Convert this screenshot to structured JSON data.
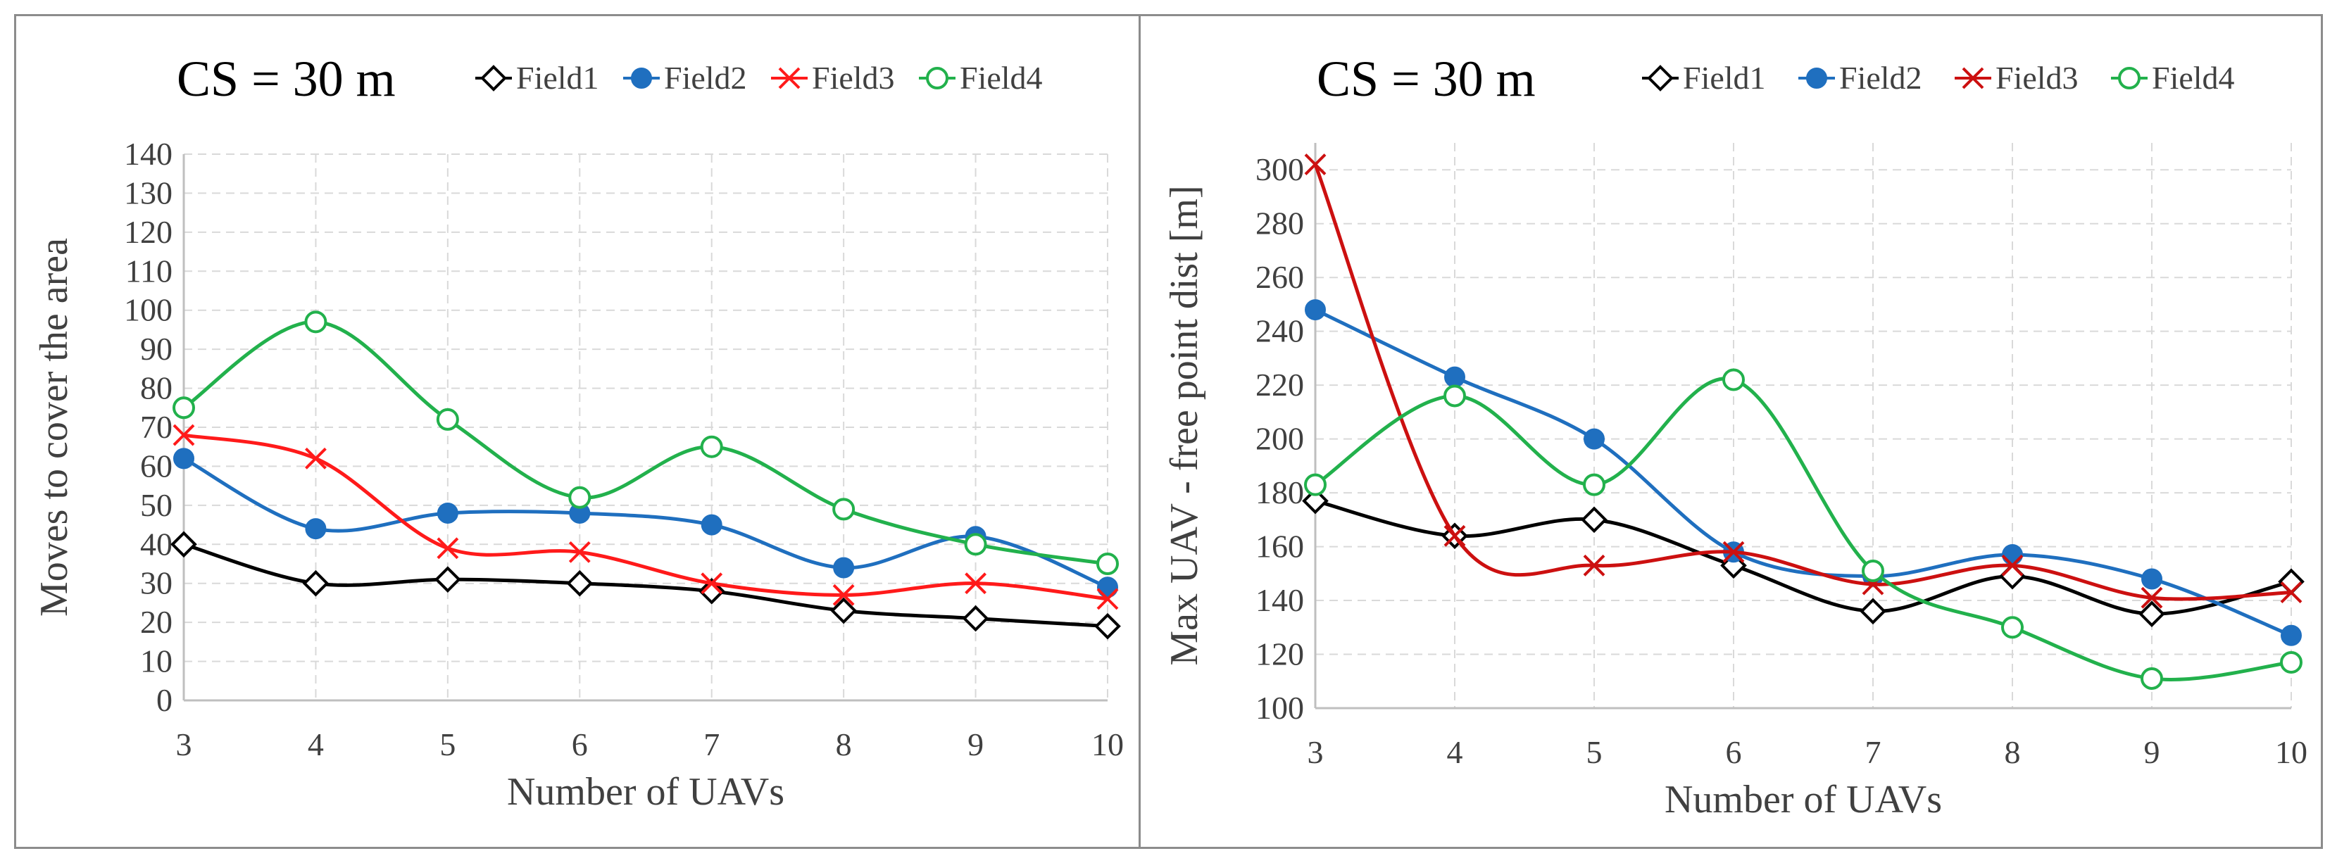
{
  "chart_data": [
    {
      "type": "line",
      "title": "CS = 30 m",
      "xlabel": "Number of UAVs",
      "ylabel": "Moves to cover the area",
      "categories": [
        "3",
        "4",
        "5",
        "6",
        "7",
        "8",
        "9",
        "10"
      ],
      "ylim": [
        0,
        140
      ],
      "yticks": [
        "0",
        "10",
        "20",
        "30",
        "40",
        "50",
        "60",
        "70",
        "80",
        "90",
        "100",
        "110",
        "120",
        "130",
        "140"
      ],
      "ytick_values": [
        0,
        10,
        20,
        30,
        40,
        50,
        60,
        70,
        80,
        90,
        100,
        110,
        120,
        130,
        140
      ],
      "grid": true,
      "legend_position": "top-right",
      "series": [
        {
          "name": "Field1",
          "color": "#000000",
          "marker": "diamond",
          "values": [
            40,
            30,
            31,
            30,
            28,
            23,
            21,
            19
          ]
        },
        {
          "name": "Field2",
          "color": "#1f6fbf",
          "marker": "circle-filled",
          "values": [
            62,
            44,
            48,
            48,
            45,
            34,
            42,
            29
          ]
        },
        {
          "name": "Field3",
          "color": "#ff1a1a",
          "marker": "cross",
          "values": [
            68,
            62,
            39,
            38,
            30,
            27,
            30,
            26
          ]
        },
        {
          "name": "Field4",
          "color": "#22b14c",
          "marker": "circle-open",
          "values": [
            75,
            97,
            72,
            52,
            65,
            49,
            40,
            35
          ]
        }
      ]
    },
    {
      "type": "line",
      "title": "CS = 30 m",
      "xlabel": "Number of UAVs",
      "ylabel": "Max UAV - free point dist [m]",
      "categories": [
        "3",
        "4",
        "5",
        "6",
        "7",
        "8",
        "9",
        "10"
      ],
      "ylim": [
        100,
        310
      ],
      "yticks": [
        "100",
        "120",
        "140",
        "160",
        "180",
        "200",
        "220",
        "240",
        "260",
        "280",
        "300"
      ],
      "ytick_values": [
        100,
        120,
        140,
        160,
        180,
        200,
        220,
        240,
        260,
        280,
        300
      ],
      "grid": true,
      "legend_position": "top-right",
      "series": [
        {
          "name": "Field1",
          "color": "#000000",
          "marker": "diamond",
          "values": [
            177,
            164,
            170,
            153,
            136,
            149,
            135,
            147
          ]
        },
        {
          "name": "Field2",
          "color": "#1f6fbf",
          "marker": "circle-filled",
          "values": [
            248,
            223,
            200,
            158,
            149,
            157,
            148,
            127
          ]
        },
        {
          "name": "Field3",
          "color": "#cc1010",
          "marker": "cross",
          "values": [
            302,
            164,
            153,
            158,
            146,
            153,
            141,
            143
          ]
        },
        {
          "name": "Field4",
          "color": "#22b14c",
          "marker": "circle-open",
          "values": [
            183,
            216,
            183,
            222,
            151,
            130,
            111,
            117
          ]
        }
      ]
    }
  ]
}
